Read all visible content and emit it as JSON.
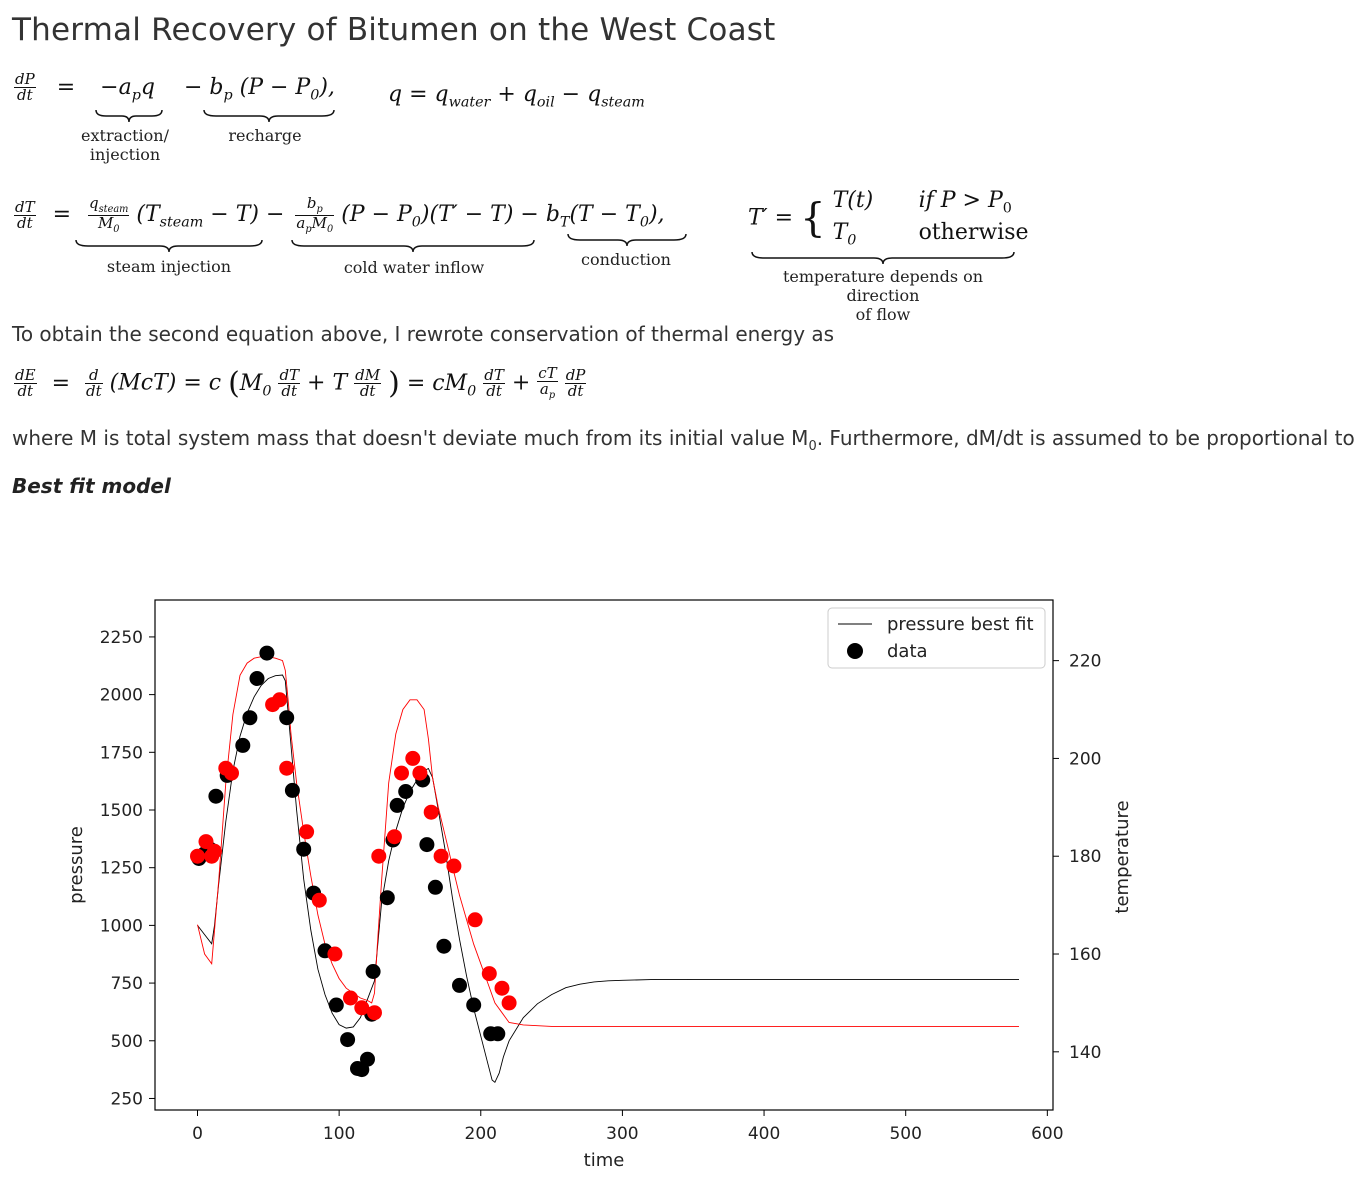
{
  "title": "Thermal Recovery of Bitumen on the West Coast",
  "equations": {
    "eq1": {
      "lhs_num": "dP",
      "lhs_den": "dt",
      "term1": "−a",
      "term1_sub": "p",
      "term1_tail": "q",
      "term2": "− b",
      "term2_sub": "p",
      "term2_tail": " (P − P",
      "term2_sub2": "0",
      "term2_end": "),",
      "brace1_label": "extraction/\ninjection",
      "brace2_label": "recharge",
      "qdef": "q = q",
      "qdef_sub1": "water",
      "qdef_mid": " + q",
      "qdef_sub2": "oil",
      "qdef_mid2": " − q",
      "qdef_sub3": "steam"
    },
    "eq2": {
      "lhs_num": "dT",
      "lhs_den": "dt",
      "f1_num": "q",
      "f1_num_sub": "steam",
      "f1_den": "M",
      "f1_den_sub": "0",
      "t1": "(T",
      "t1_sub": "steam",
      "t1_end": " − T) −",
      "f2_num": "b",
      "f2_num_sub": "p",
      "f2_den": "a",
      "f2_den_sub": "p",
      "f2_den_tail": "M",
      "f2_den_sub2": "0",
      "t2": "(P − P",
      "t2_sub": "0",
      "t2_mid": ")(T′ − T) − b",
      "t2_sub2": "T",
      "t2_end": "(T − T",
      "t2_sub3": "0",
      "t2_close": "),",
      "brace1_label": "steam injection",
      "brace2_label": "cold water inflow",
      "brace3_label": "conduction",
      "tprime_lhs": "T′ =",
      "case1_expr": "T(t)",
      "case1_cond": "if P > P",
      "case1_cond_sub": "0",
      "case2_expr": "T",
      "case2_expr_sub": "0",
      "case2_cond": "otherwise",
      "brace4_label": "temperature depends on direction\nof flow"
    },
    "eq3": {
      "lhs_num": "dE",
      "lhs_den": "dt",
      "d_num": "d",
      "d_den": "dt",
      "mid1": "(McT) = c",
      "paren_open": "(",
      "m0": "M",
      "m0_sub": "0",
      "dT_num": "dT",
      "dT_den": "dt",
      "plus_t": " + T",
      "dM_num": "dM",
      "dM_den": "dt",
      "paren_close": ")",
      "mid2": " = cM",
      "mid2_sub": "0",
      "dT2_num": "dT",
      "dT2_den": "dt",
      "plus": " +",
      "cT_num": "cT",
      "cT_den": "a",
      "cT_den_sub": "p",
      "dP_num": "dP",
      "dP_den": "dt"
    }
  },
  "prose": {
    "line1": "To obtain the second equation above, I rewrote conservation of thermal energy as",
    "line2": "where M is total system mass that doesn't deviate much from its initial value M",
    "line2_sub": "0",
    "line2_tail": ". Furthermore, dM/dt is assumed to be proportional to dP/dt.",
    "subheading": "Best fit model"
  },
  "chart_data": {
    "type": "line",
    "xlabel": "time",
    "ylabel": "pressure",
    "ylabel_right": "temperature",
    "xlim": [
      -30,
      604
    ],
    "ylim": [
      200,
      2410
    ],
    "ylim_right": [
      128.1,
      232.4
    ],
    "xticks": [
      0,
      100,
      200,
      300,
      400,
      500,
      600
    ],
    "yticks": [
      250,
      500,
      750,
      1000,
      1250,
      1500,
      1750,
      2000,
      2250
    ],
    "yticks_right": [
      140,
      160,
      180,
      200,
      220
    ],
    "legend_location": "top-right",
    "legend": [
      {
        "label": "pressure best fit",
        "marker": "line",
        "color": "#000000"
      },
      {
        "label": "data",
        "marker": "dot",
        "color": "#000000"
      }
    ],
    "series": [
      {
        "name": "pressure best fit",
        "axis": "left",
        "color": "#000000",
        "kind": "line",
        "x": [
          0,
          5,
          10,
          12,
          15,
          20,
          25,
          30,
          35,
          40,
          45,
          50,
          55,
          60,
          62,
          65,
          70,
          75,
          80,
          85,
          90,
          95,
          100,
          105,
          110,
          115,
          120,
          125,
          127,
          130,
          135,
          140,
          145,
          150,
          155,
          160,
          163,
          166,
          170,
          175,
          180,
          185,
          190,
          195,
          200,
          205,
          208,
          210,
          213,
          216,
          220,
          230,
          240,
          250,
          260,
          270,
          280,
          290,
          300,
          320,
          350,
          400,
          450,
          500,
          550,
          580
        ],
        "y": [
          1000,
          960,
          920,
          1000,
          1180,
          1450,
          1670,
          1820,
          1920,
          1990,
          2040,
          2070,
          2082,
          2085,
          2060,
          1850,
          1500,
          1200,
          980,
          810,
          700,
          620,
          570,
          555,
          560,
          600,
          680,
          760,
          900,
          1100,
          1280,
          1410,
          1510,
          1580,
          1630,
          1670,
          1680,
          1640,
          1500,
          1320,
          1120,
          940,
          780,
          640,
          520,
          400,
          330,
          320,
          360,
          430,
          500,
          600,
          660,
          700,
          730,
          745,
          755,
          760,
          762,
          765,
          766,
          766,
          766,
          766,
          766,
          766
        ]
      },
      {
        "name": "",
        "axis": "right",
        "color": "#ff0000",
        "kind": "line",
        "x": [
          0,
          5,
          10,
          15,
          20,
          25,
          30,
          35,
          40,
          45,
          50,
          55,
          60,
          62,
          64,
          66,
          70,
          75,
          80,
          85,
          90,
          95,
          100,
          105,
          110,
          115,
          120,
          123,
          125,
          127,
          130,
          135,
          140,
          145,
          150,
          155,
          160,
          163,
          166,
          170,
          175,
          180,
          185,
          190,
          195,
          200,
          205,
          210,
          215,
          220,
          230,
          250,
          300,
          400,
          500,
          580
        ],
        "y": [
          166,
          160,
          158,
          175,
          195,
          209,
          217,
          219.5,
          220.5,
          220.8,
          220.8,
          220.5,
          220,
          218,
          212,
          205,
          195,
          185,
          176,
          168,
          162,
          158,
          155,
          153,
          152,
          151,
          150.5,
          150,
          152,
          162,
          175,
          195,
          205,
          210,
          212,
          212,
          210,
          204,
          196,
          190,
          184,
          178,
          172,
          167,
          162,
          158,
          154,
          150,
          148,
          146,
          145.5,
          145.2,
          145.2,
          145.2,
          145.2,
          145.2
        ]
      },
      {
        "name": "data",
        "axis": "left",
        "color": "#000000",
        "kind": "scatter",
        "x": [
          1,
          5,
          9,
          13,
          21,
          32,
          37,
          42,
          49,
          63,
          67,
          75,
          82,
          90,
          98,
          106,
          113,
          116,
          120,
          123,
          124,
          134,
          138,
          141,
          147,
          159,
          162,
          168,
          174,
          185,
          195,
          207,
          212
        ],
        "y": [
          1290,
          1310,
          1330,
          1560,
          1650,
          1780,
          1900,
          2070,
          2180,
          1900,
          1585,
          1330,
          1140,
          890,
          655,
          505,
          380,
          375,
          420,
          615,
          800,
          1120,
          1370,
          1520,
          1580,
          1630,
          1350,
          1165,
          910,
          740,
          655,
          530,
          530
        ]
      },
      {
        "name": "",
        "axis": "right",
        "color": "#ff0000",
        "kind": "scatter",
        "x": [
          0,
          6,
          10,
          12,
          20,
          24,
          53,
          58,
          63,
          77,
          86,
          97,
          108,
          116,
          125,
          128,
          139,
          144,
          152,
          157,
          165,
          172,
          181,
          196,
          206,
          215,
          220
        ],
        "y": [
          180,
          183,
          180,
          181,
          198,
          197,
          211,
          212,
          198,
          185,
          171,
          160,
          151,
          149,
          148,
          180,
          184,
          197,
          200,
          197,
          189,
          180,
          178,
          167,
          156,
          153,
          150
        ]
      }
    ]
  }
}
